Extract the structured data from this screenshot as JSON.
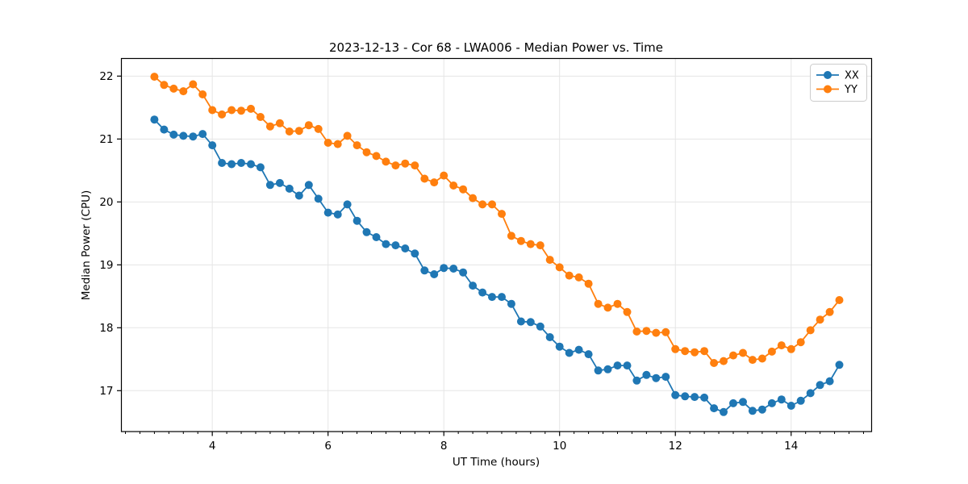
{
  "figure": {
    "title": "2023-12-13 - Cor 68 - LWA006 - Median Power vs. Time",
    "background_color": "#ffffff"
  },
  "axes": {
    "xlabel": "UT Time (hours)",
    "ylabel": "Median Power (CPU)",
    "xlim": [
      2.43,
      15.39
    ],
    "ylim": [
      16.35,
      22.28
    ],
    "xticks": [
      4,
      6,
      8,
      10,
      12,
      14
    ],
    "yticks": [
      17,
      18,
      19,
      20,
      21,
      22
    ],
    "x_minor_tick_step": 0.25,
    "grid": true,
    "grid_color": "#e5e5e5",
    "spine_color": "#000000"
  },
  "legend": {
    "position": "upper right",
    "items": [
      {
        "label": "XX",
        "color": "#1f77b4"
      },
      {
        "label": "YY",
        "color": "#ff7f0e"
      }
    ]
  },
  "chart_data": {
    "type": "line",
    "title": "2023-12-13 - Cor 68 - LWA006 - Median Power vs. Time",
    "xlabel": "UT Time (hours)",
    "ylabel": "Median Power (CPU)",
    "xlim": [
      2.43,
      15.39
    ],
    "ylim": [
      16.35,
      22.28
    ],
    "grid": true,
    "legend_position": "upper right",
    "marker": "circle",
    "x": [
      3.0,
      3.167,
      3.333,
      3.5,
      3.667,
      3.833,
      4.0,
      4.167,
      4.333,
      4.5,
      4.667,
      4.833,
      5.0,
      5.167,
      5.333,
      5.5,
      5.667,
      5.833,
      6.0,
      6.167,
      6.333,
      6.5,
      6.667,
      6.833,
      7.0,
      7.167,
      7.333,
      7.5,
      7.667,
      7.833,
      8.0,
      8.167,
      8.333,
      8.5,
      8.667,
      8.833,
      9.0,
      9.167,
      9.333,
      9.5,
      9.667,
      9.833,
      10.0,
      10.167,
      10.333,
      10.5,
      10.667,
      10.833,
      11.0,
      11.167,
      11.333,
      11.5,
      11.667,
      11.833,
      12.0,
      12.167,
      12.333,
      12.5,
      12.667,
      12.833,
      13.0,
      13.167,
      13.333,
      13.5,
      13.667,
      13.833,
      14.0,
      14.167,
      14.333,
      14.5,
      14.667,
      14.833
    ],
    "series": [
      {
        "name": "XX",
        "color": "#1f77b4",
        "values": [
          21.31,
          21.15,
          21.07,
          21.05,
          21.04,
          21.08,
          20.9,
          20.62,
          20.6,
          20.62,
          20.6,
          20.55,
          20.27,
          20.3,
          20.21,
          20.1,
          20.27,
          20.05,
          19.83,
          19.8,
          19.96,
          19.7,
          19.52,
          19.44,
          19.33,
          19.31,
          19.26,
          19.18,
          18.91,
          18.85,
          18.95,
          18.94,
          18.88,
          18.67,
          18.56,
          18.49,
          18.49,
          18.38,
          18.1,
          18.09,
          18.02,
          17.85,
          17.7,
          17.6,
          17.65,
          17.58,
          17.32,
          17.34,
          17.4,
          17.4,
          17.16,
          17.25,
          17.2,
          17.22,
          16.93,
          16.91,
          16.9,
          16.89,
          16.72,
          16.66,
          16.8,
          16.82,
          16.68,
          16.7,
          16.8,
          16.86,
          16.76,
          16.84,
          16.96,
          17.09,
          17.15,
          17.41
        ]
      },
      {
        "name": "YY",
        "color": "#ff7f0e",
        "values": [
          21.99,
          21.86,
          21.8,
          21.76,
          21.87,
          21.71,
          21.46,
          21.39,
          21.46,
          21.45,
          21.48,
          21.35,
          21.2,
          21.25,
          21.12,
          21.13,
          21.22,
          21.16,
          20.94,
          20.92,
          21.05,
          20.9,
          20.79,
          20.73,
          20.64,
          20.58,
          20.61,
          20.58,
          20.37,
          20.31,
          20.42,
          20.26,
          20.2,
          20.06,
          19.96,
          19.96,
          19.81,
          19.46,
          19.38,
          19.33,
          19.31,
          19.08,
          18.96,
          18.83,
          18.8,
          18.7,
          18.38,
          18.32,
          18.38,
          18.25,
          17.94,
          17.95,
          17.92,
          17.93,
          17.66,
          17.63,
          17.61,
          17.63,
          17.44,
          17.47,
          17.56,
          17.6,
          17.49,
          17.51,
          17.62,
          17.72,
          17.66,
          17.77,
          17.96,
          18.13,
          18.25,
          18.44
        ]
      }
    ]
  }
}
